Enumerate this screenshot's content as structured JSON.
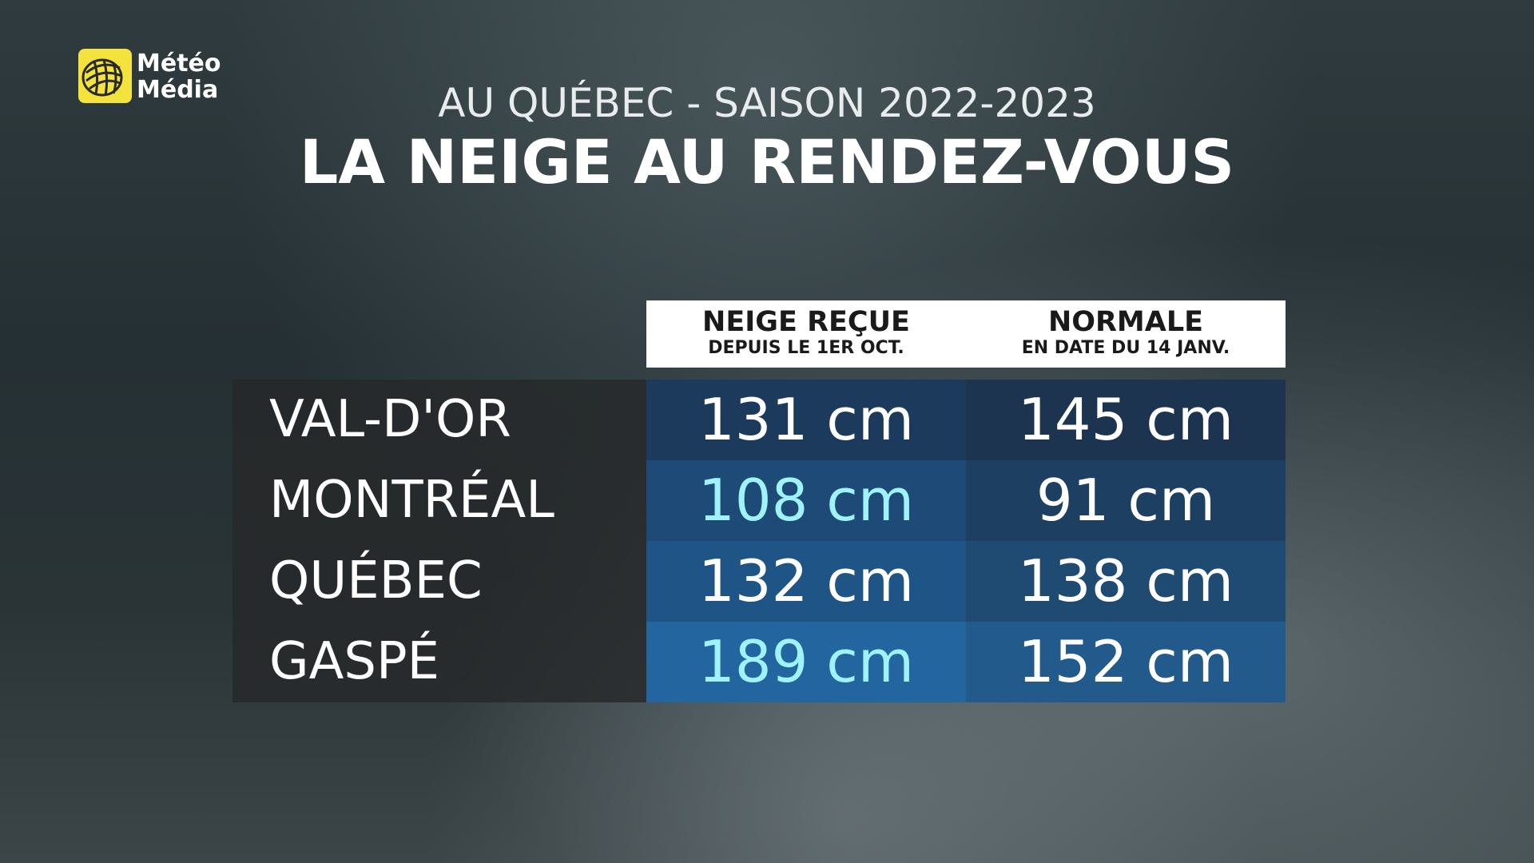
{
  "logo": {
    "line1": "Météo",
    "line2": "Média"
  },
  "header": {
    "subtitle": "AU QUÉBEC - SAISON 2022-2023",
    "title": "LA NEIGE AU RENDEZ-VOUS"
  },
  "table": {
    "columns": [
      {
        "title": "NEIGE REÇUE",
        "subtitle": "DEPUIS LE 1ER OCT."
      },
      {
        "title": "NORMALE",
        "subtitle": "EN DATE DU 14 JANV."
      }
    ],
    "rows": [
      [
        "VAL-D'OR",
        "131 cm",
        "145 cm"
      ],
      [
        "MONTRÉAL",
        "108 cm",
        "91 cm"
      ],
      [
        "QUÉBEC",
        "132 cm",
        "138 cm"
      ],
      [
        "GASPÉ",
        "189 cm",
        "152 cm"
      ]
    ]
  }
}
